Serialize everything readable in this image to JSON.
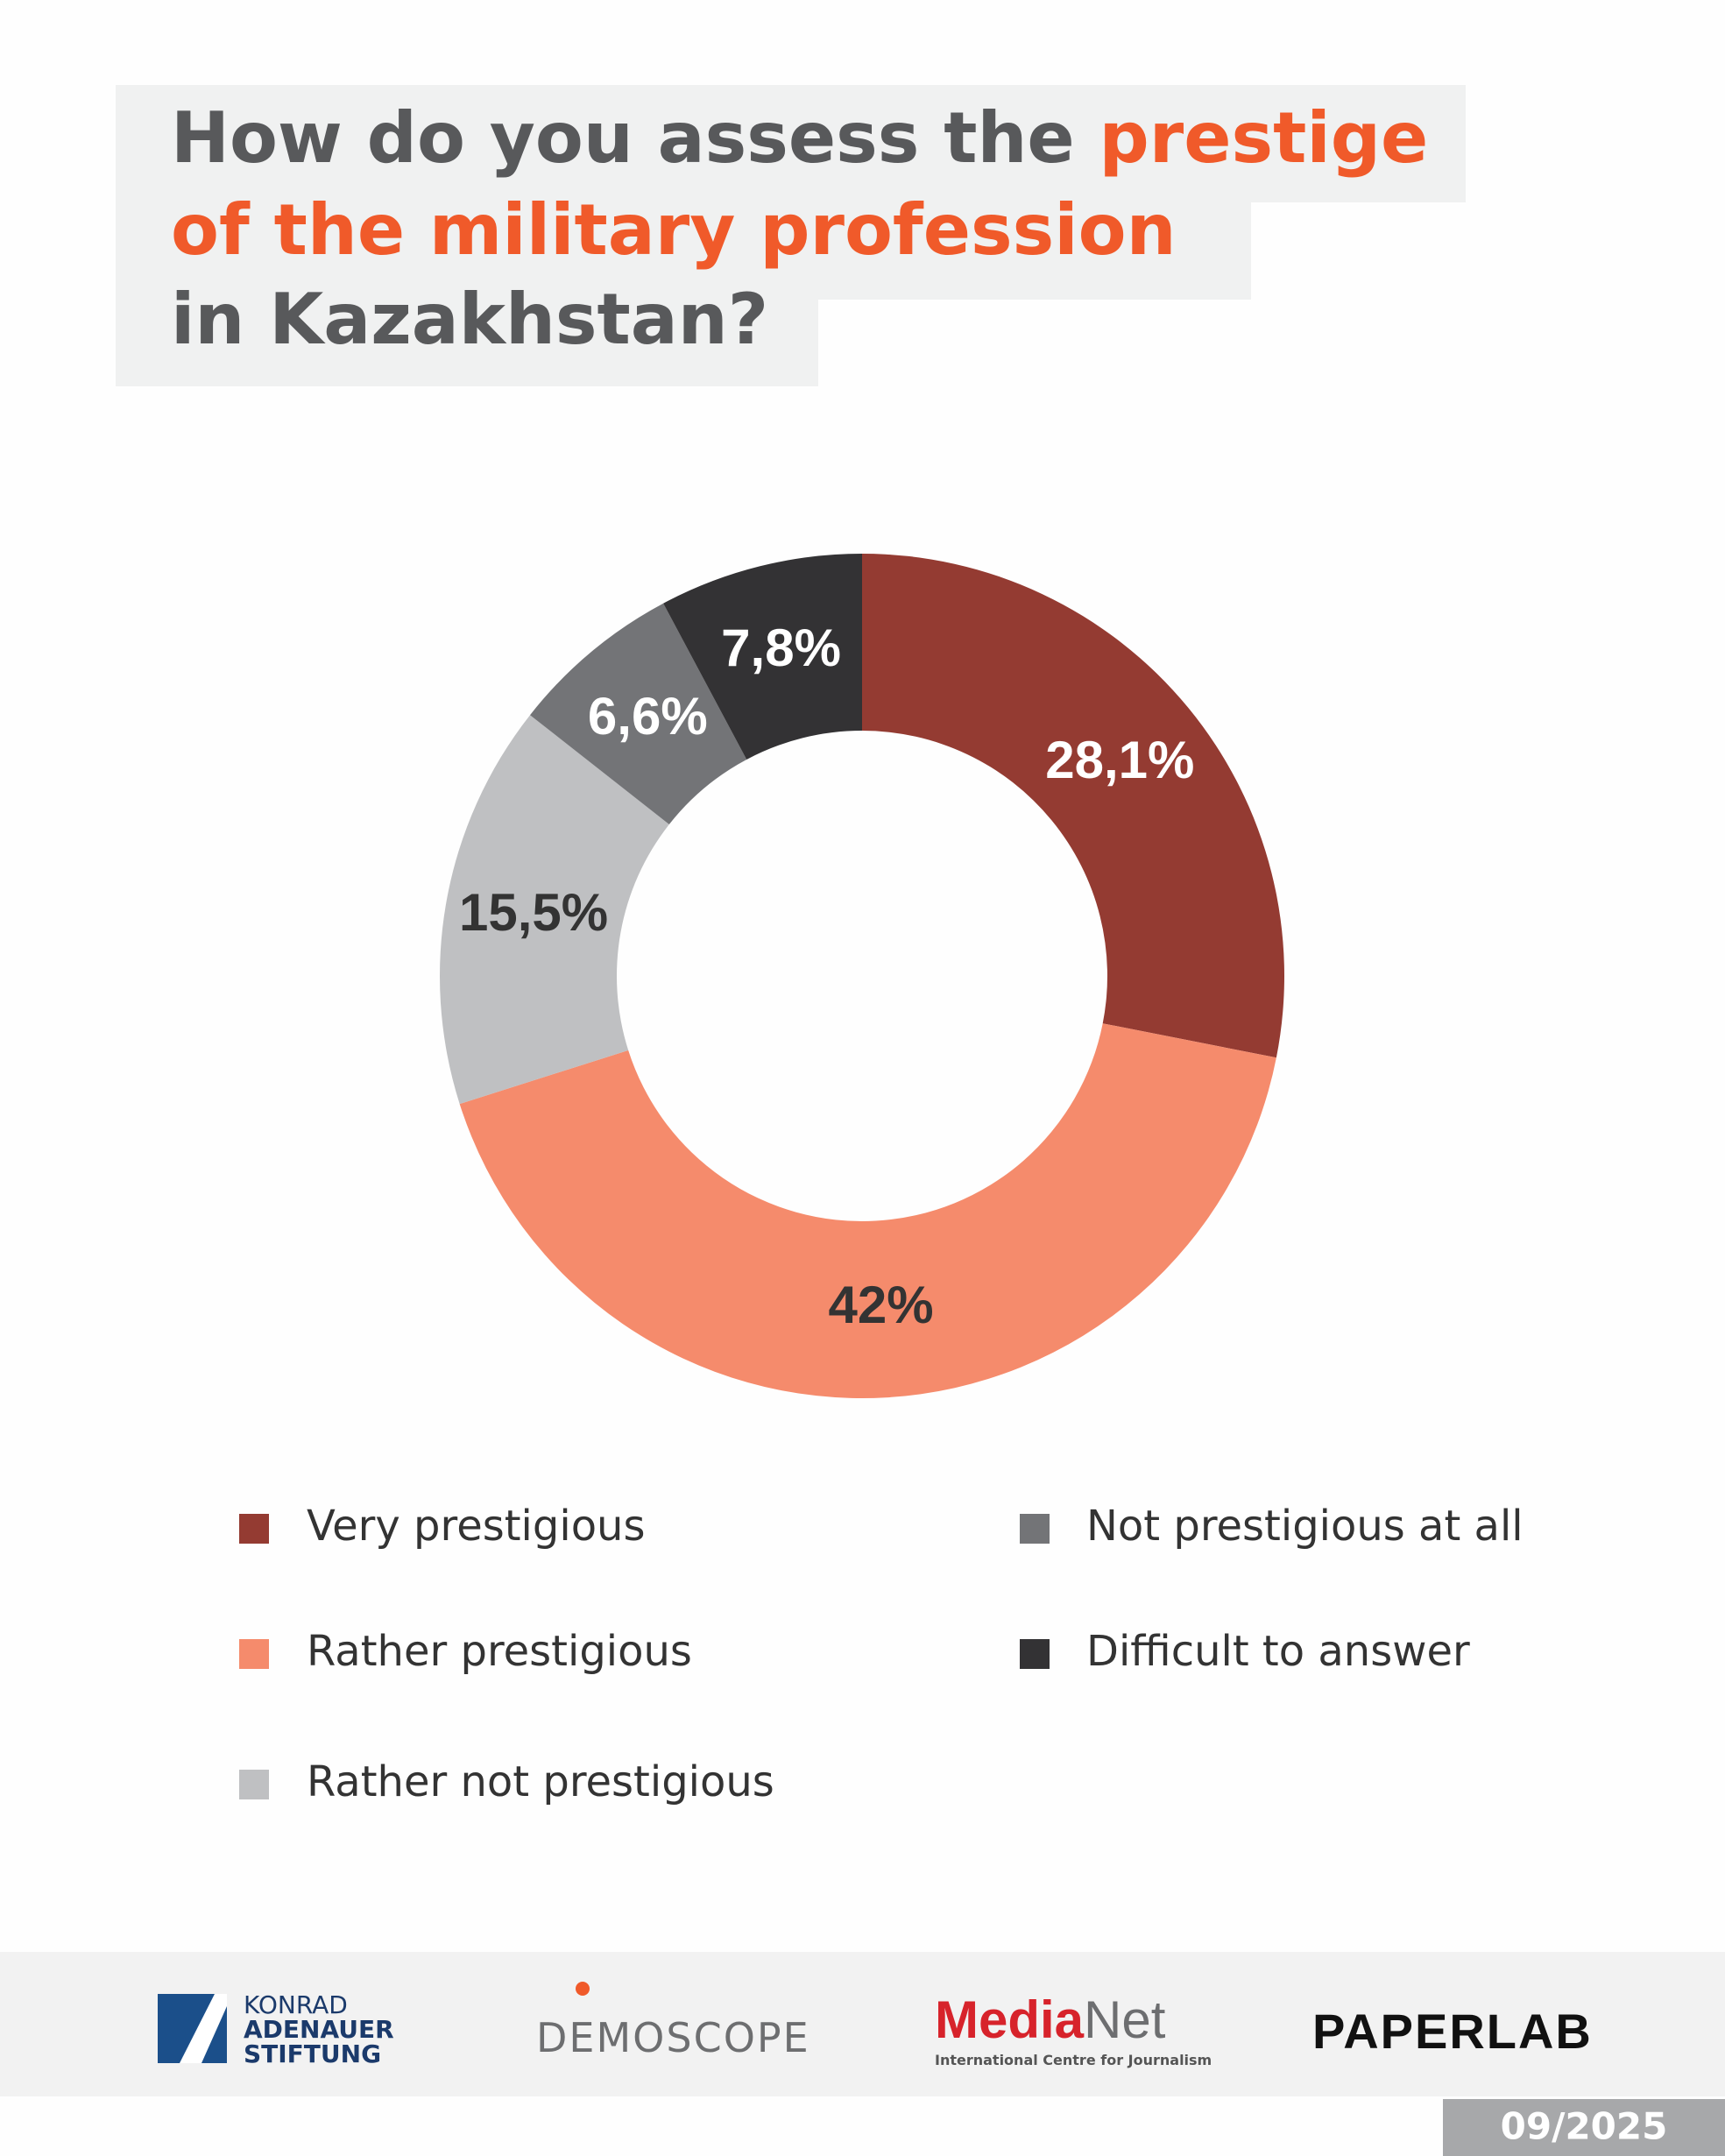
{
  "chart_data": {
    "type": "donut",
    "title_lines": [
      [
        {
          "text": "How do you assess the ",
          "color": "#58595b"
        },
        {
          "text": "prestige",
          "color": "#f05a2a"
        }
      ],
      [
        {
          "text": "of the military profession",
          "color": "#f05a2a"
        }
      ],
      [
        {
          "text": "in Kazakhstan?",
          "color": "#58595b"
        }
      ]
    ],
    "categories": [
      "Very prestigious",
      "Rather prestigious",
      "Rather not prestigious",
      "Not prestigious at all",
      "Difficult to answer"
    ],
    "values": [
      28.1,
      42,
      15.5,
      6.6,
      7.8
    ],
    "value_labels": [
      "28,1%",
      "42%",
      "15,5%",
      "6,6%",
      "7,8%"
    ],
    "colors": [
      "#943b32",
      "#f58b6c",
      "#bfc0c2",
      "#737477",
      "#333234"
    ]
  },
  "footer": {
    "kas": [
      "KONRAD",
      "ADENAUER",
      "STIFTUNG"
    ],
    "demoscope": "DEMOSCOPE",
    "medianet": {
      "media": "Media",
      "net": "Net",
      "tagline": "International Centre for Journalism"
    },
    "paperlab": "PAPERLAB",
    "date": "09/2025"
  }
}
